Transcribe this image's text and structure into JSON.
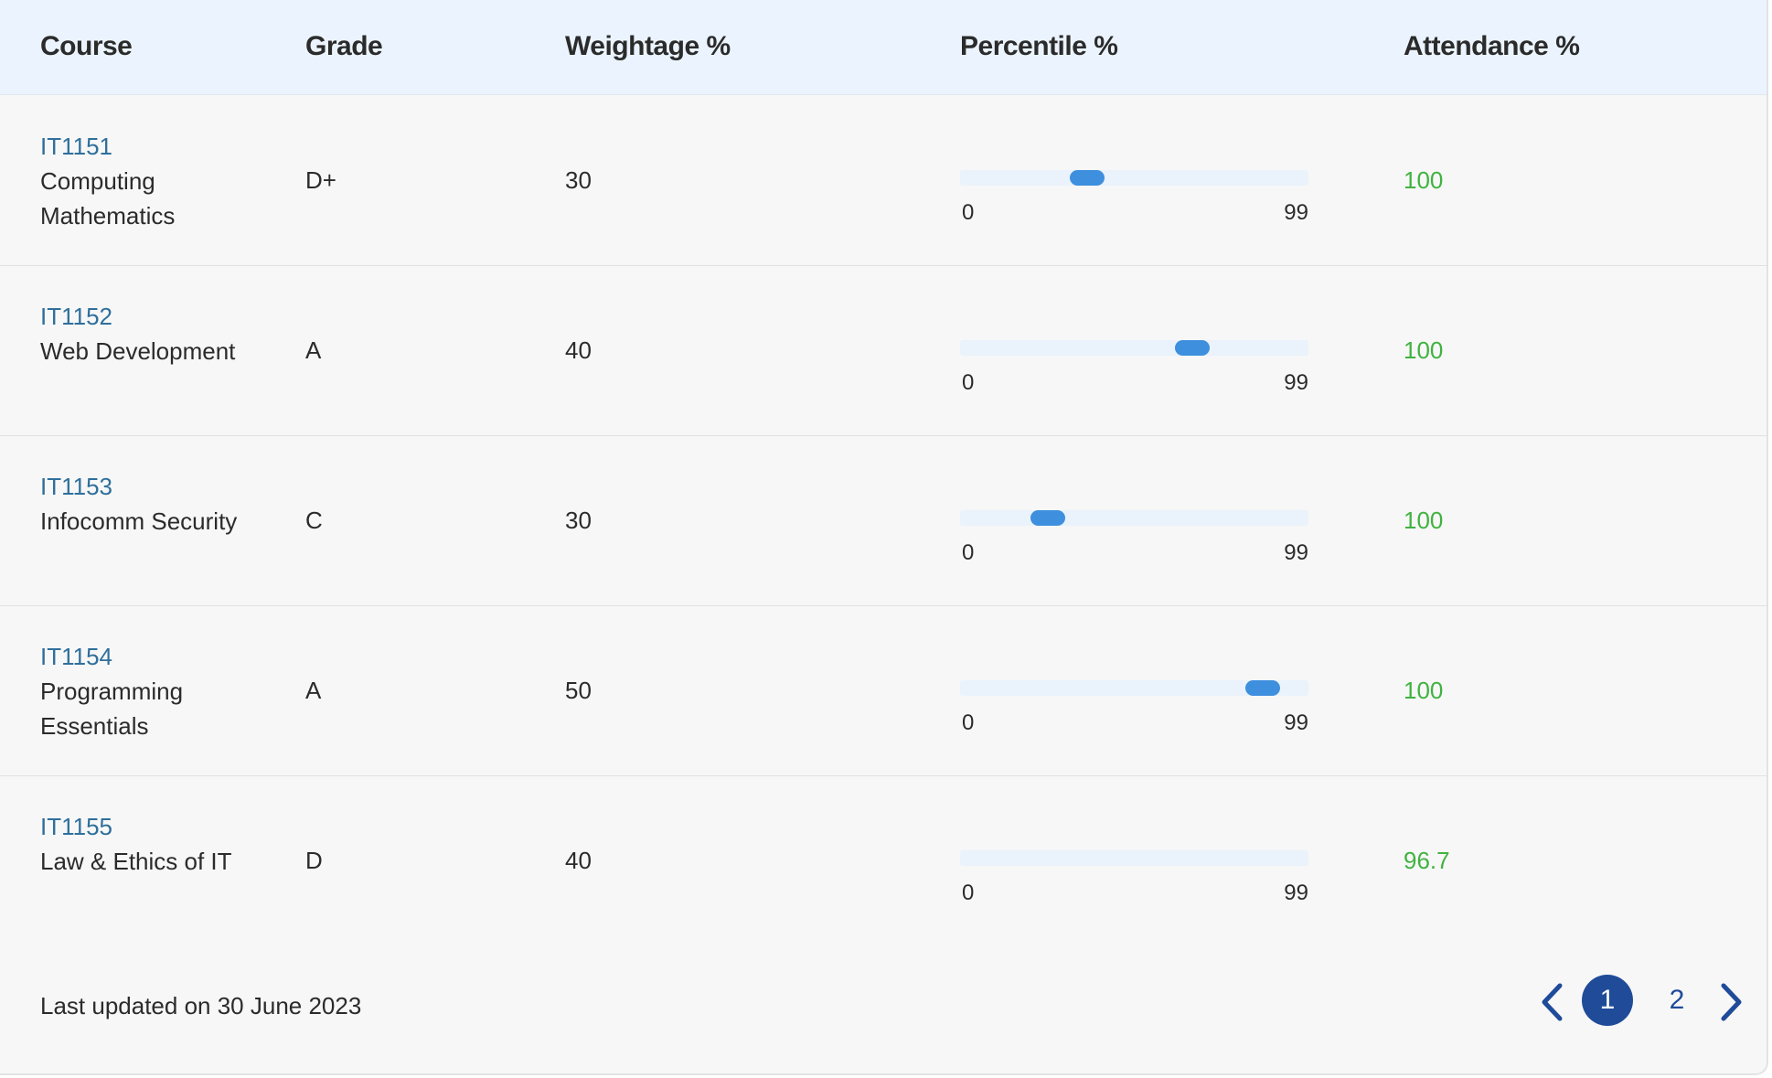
{
  "table": {
    "headers": {
      "course": "Course",
      "grade": "Grade",
      "weightage": "Weightage %",
      "percentile": "Percentile %",
      "attendance": "Attendance %"
    },
    "percentile_scale": {
      "min": "0",
      "max": "99"
    },
    "rows": [
      {
        "code": "IT1151",
        "name": "Computing Mathematics",
        "grade": "D+",
        "weightage": "30",
        "percentile": 36,
        "attendance": "100"
      },
      {
        "code": "IT1152",
        "name": "Web Development",
        "grade": "A",
        "weightage": "40",
        "percentile": 66,
        "attendance": "100"
      },
      {
        "code": "IT1153",
        "name": "Infocomm Security",
        "grade": "C",
        "weightage": "30",
        "percentile": 25,
        "attendance": "100"
      },
      {
        "code": "IT1154",
        "name": "Programming Essentials",
        "grade": "A",
        "weightage": "50",
        "percentile": 86,
        "attendance": "100"
      },
      {
        "code": "IT1155",
        "name": "Law & Ethics of IT",
        "grade": "D",
        "weightage": "40",
        "percentile": null,
        "attendance": "96.7"
      }
    ]
  },
  "footer": {
    "last_updated": "Last updated on 30 June 2023"
  },
  "pagination": {
    "pages": [
      "1",
      "2"
    ],
    "current": "1",
    "prev_icon": "chevron-left-icon",
    "next_icon": "chevron-right-icon"
  },
  "colors": {
    "header_bg": "#ebf4fe",
    "course_code": "#2f6f9b",
    "attendance": "#40b340",
    "slider_track": "#eaf2fb",
    "slider_knob": "#3e8fde",
    "pager_active": "#1f4b99"
  }
}
